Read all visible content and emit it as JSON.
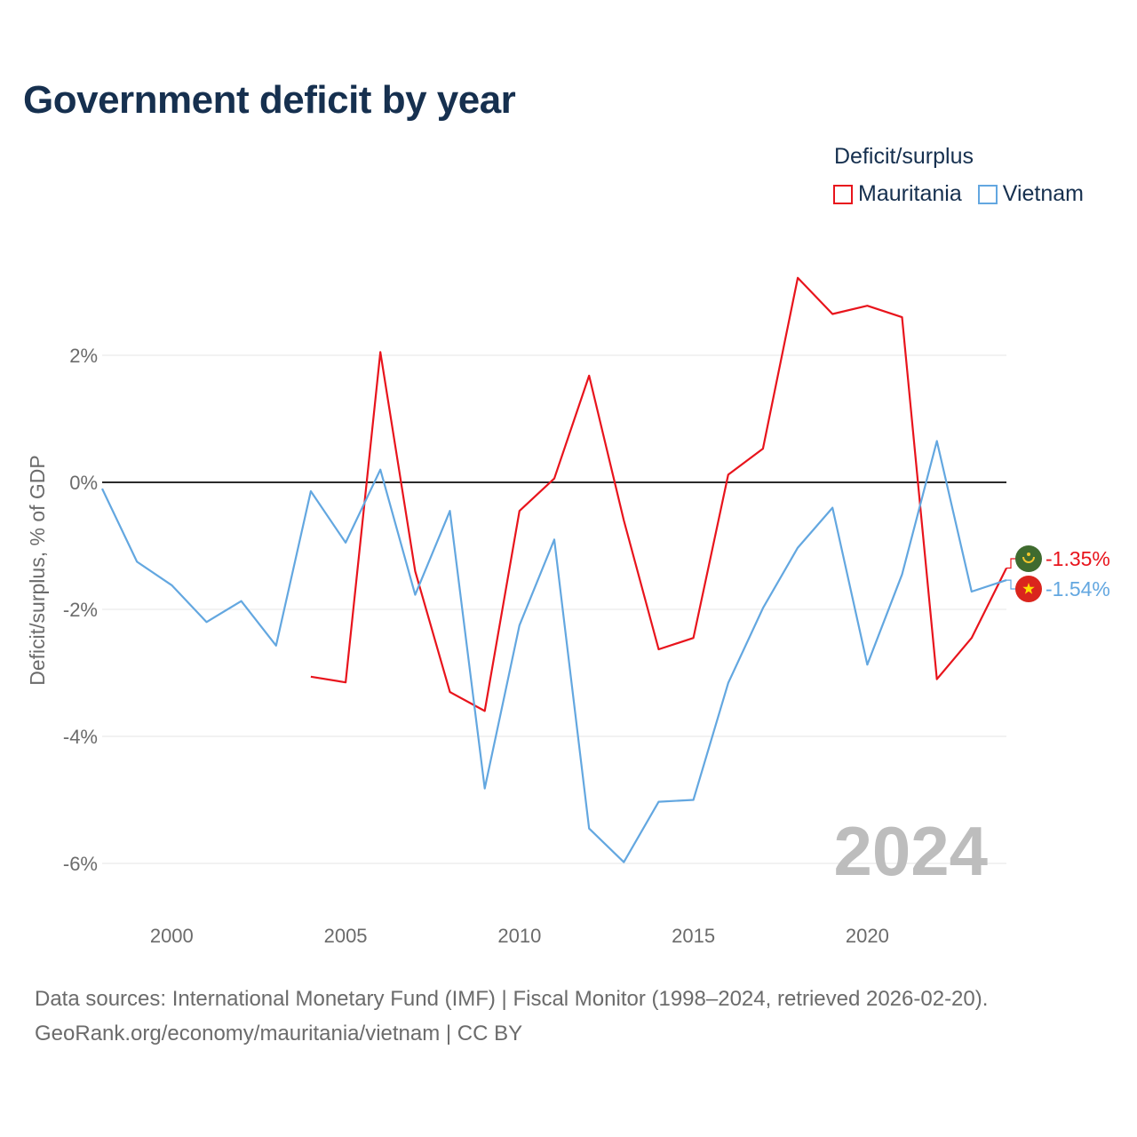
{
  "title": "Government deficit by year",
  "legend": {
    "title": "Deficit/surplus",
    "items": [
      {
        "label": "Mauritania",
        "color": "#e8141c"
      },
      {
        "label": "Vietnam",
        "color": "#63a7e0"
      }
    ]
  },
  "footer": {
    "line1": "Data sources: International Monetary Fund (IMF) | Fiscal Monitor (1998–2024, retrieved 2026-02-20).",
    "line2": "GeoRank.org/economy/mauritania/vietnam | CC BY"
  },
  "chart_data": {
    "type": "line",
    "title": "Government deficit by year",
    "ylabel": "Deficit/surplus, % of GDP",
    "xlabel": "",
    "xlim": [
      1998,
      2024
    ],
    "ylim": [
      -6.6,
      3.6
    ],
    "x_ticks": [
      2000,
      2005,
      2010,
      2015,
      2020
    ],
    "x_tick_labels": [
      "2000",
      "2005",
      "2010",
      "2015",
      "2020"
    ],
    "y_ticks": [
      2,
      0,
      -2,
      -4,
      -6
    ],
    "y_tick_labels": [
      "2%",
      "0%",
      "-2%",
      "-4%",
      "-6%"
    ],
    "year_label": "2024",
    "series": [
      {
        "name": "Mauritania",
        "color": "#e8141c",
        "end_label": "-1.35%",
        "x": [
          2004,
          2005,
          2006,
          2007,
          2008,
          2009,
          2010,
          2011,
          2012,
          2013,
          2014,
          2015,
          2016,
          2017,
          2018,
          2019,
          2020,
          2021,
          2022,
          2023,
          2024
        ],
        "values": [
          -3.06,
          -3.15,
          2.05,
          -1.4,
          -3.3,
          -3.6,
          -0.45,
          0.06,
          1.68,
          -0.6,
          -2.63,
          -2.45,
          0.12,
          0.53,
          3.22,
          2.65,
          2.78,
          2.6,
          -3.1,
          -2.45,
          -1.35
        ]
      },
      {
        "name": "Vietnam",
        "color": "#63a7e0",
        "end_label": "-1.54%",
        "x": [
          1998,
          1999,
          2000,
          2001,
          2002,
          2003,
          2004,
          2005,
          2006,
          2007,
          2008,
          2009,
          2010,
          2011,
          2012,
          2013,
          2014,
          2015,
          2016,
          2017,
          2018,
          2019,
          2020,
          2021,
          2022,
          2023,
          2024
        ],
        "values": [
          -0.1,
          -1.25,
          -1.62,
          -2.2,
          -1.87,
          -2.57,
          -0.14,
          -0.95,
          0.2,
          -1.77,
          -0.45,
          -4.82,
          -2.25,
          -0.9,
          -5.45,
          -5.98,
          -5.03,
          -5.0,
          -3.16,
          -1.98,
          -1.03,
          -0.4,
          -2.87,
          -1.45,
          0.65,
          -1.72,
          -1.54
        ]
      }
    ]
  }
}
